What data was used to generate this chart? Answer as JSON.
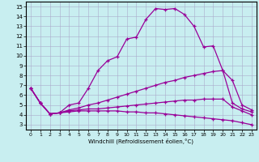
{
  "xlabel": "Windchill (Refroidissement éolien,°C)",
  "bg_color": "#c8eef0",
  "line_color": "#990099",
  "x_ticks": [
    0,
    1,
    2,
    3,
    4,
    5,
    6,
    7,
    8,
    9,
    10,
    11,
    12,
    13,
    14,
    15,
    16,
    17,
    18,
    19,
    20,
    21,
    22,
    23
  ],
  "y_ticks": [
    3,
    4,
    5,
    6,
    7,
    8,
    9,
    10,
    11,
    12,
    13,
    14,
    15
  ],
  "xlim": [
    -0.5,
    23.5
  ],
  "ylim": [
    2.5,
    15.5
  ],
  "lines": [
    {
      "x": [
        0,
        1,
        2,
        3,
        4,
        5,
        6,
        7,
        8,
        9,
        10,
        11,
        12,
        13,
        14,
        15,
        16,
        17,
        18,
        19,
        20,
        21,
        22,
        23
      ],
      "y": [
        6.7,
        5.2,
        4.1,
        4.2,
        5.0,
        5.2,
        6.7,
        8.5,
        9.5,
        9.9,
        11.7,
        11.9,
        13.7,
        14.8,
        14.7,
        14.8,
        14.2,
        13.0,
        10.9,
        11.0,
        8.5,
        7.5,
        5.0,
        4.5
      ]
    },
    {
      "x": [
        0,
        1,
        2,
        3,
        4,
        5,
        6,
        7,
        8,
        9,
        10,
        11,
        12,
        13,
        14,
        15,
        16,
        17,
        18,
        19,
        20,
        21,
        22,
        23
      ],
      "y": [
        6.7,
        5.2,
        4.1,
        4.2,
        4.5,
        4.7,
        5.0,
        5.2,
        5.5,
        5.8,
        6.1,
        6.4,
        6.7,
        7.0,
        7.3,
        7.5,
        7.8,
        8.0,
        8.2,
        8.4,
        8.5,
        5.2,
        4.6,
        4.3
      ]
    },
    {
      "x": [
        0,
        1,
        2,
        3,
        4,
        5,
        6,
        7,
        8,
        9,
        10,
        11,
        12,
        13,
        14,
        15,
        16,
        17,
        18,
        19,
        20,
        21,
        22,
        23
      ],
      "y": [
        6.7,
        5.2,
        4.1,
        4.2,
        4.4,
        4.5,
        4.6,
        4.6,
        4.7,
        4.8,
        4.9,
        5.0,
        5.1,
        5.2,
        5.3,
        5.4,
        5.5,
        5.5,
        5.6,
        5.6,
        5.6,
        4.8,
        4.4,
        4.0
      ]
    },
    {
      "x": [
        0,
        1,
        2,
        3,
        4,
        5,
        6,
        7,
        8,
        9,
        10,
        11,
        12,
        13,
        14,
        15,
        16,
        17,
        18,
        19,
        20,
        21,
        22,
        23
      ],
      "y": [
        6.7,
        5.2,
        4.1,
        4.2,
        4.3,
        4.4,
        4.4,
        4.4,
        4.4,
        4.4,
        4.3,
        4.3,
        4.2,
        4.2,
        4.1,
        4.0,
        3.9,
        3.8,
        3.7,
        3.6,
        3.5,
        3.4,
        3.2,
        3.0
      ]
    }
  ]
}
